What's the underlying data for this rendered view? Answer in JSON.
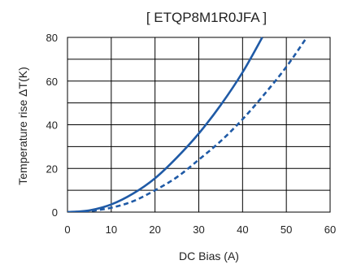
{
  "chart_data": {
    "type": "line",
    "title": "[ ETQP8M1R0JFA ]",
    "xlabel": "DC Bias (A)",
    "ylabel": "Temperature rise ΔT(K)",
    "xlim": [
      0,
      60
    ],
    "ylim": [
      0,
      80
    ],
    "xticks": [
      "0",
      "10",
      "20",
      "30",
      "40",
      "50",
      "60"
    ],
    "yticks": [
      "0",
      "20",
      "40",
      "60",
      "80"
    ],
    "grid": true,
    "legend": "none",
    "series": [
      {
        "style": "solid",
        "color": "#1f5aa6",
        "x": [
          0,
          5,
          10,
          15,
          20,
          25,
          30,
          35,
          40,
          44.5
        ],
        "y": [
          0,
          0.8,
          3.5,
          8.5,
          15.5,
          25,
          36,
          49,
          64,
          80
        ]
      },
      {
        "style": "dashed",
        "color": "#1f5aa6",
        "x": [
          0,
          5,
          10,
          15,
          20,
          25,
          30,
          35,
          40,
          45,
          50,
          54.5
        ],
        "y": [
          0,
          0.5,
          2,
          5,
          10,
          16,
          24,
          32.5,
          42.5,
          54,
          66.5,
          79.5
        ]
      }
    ]
  }
}
